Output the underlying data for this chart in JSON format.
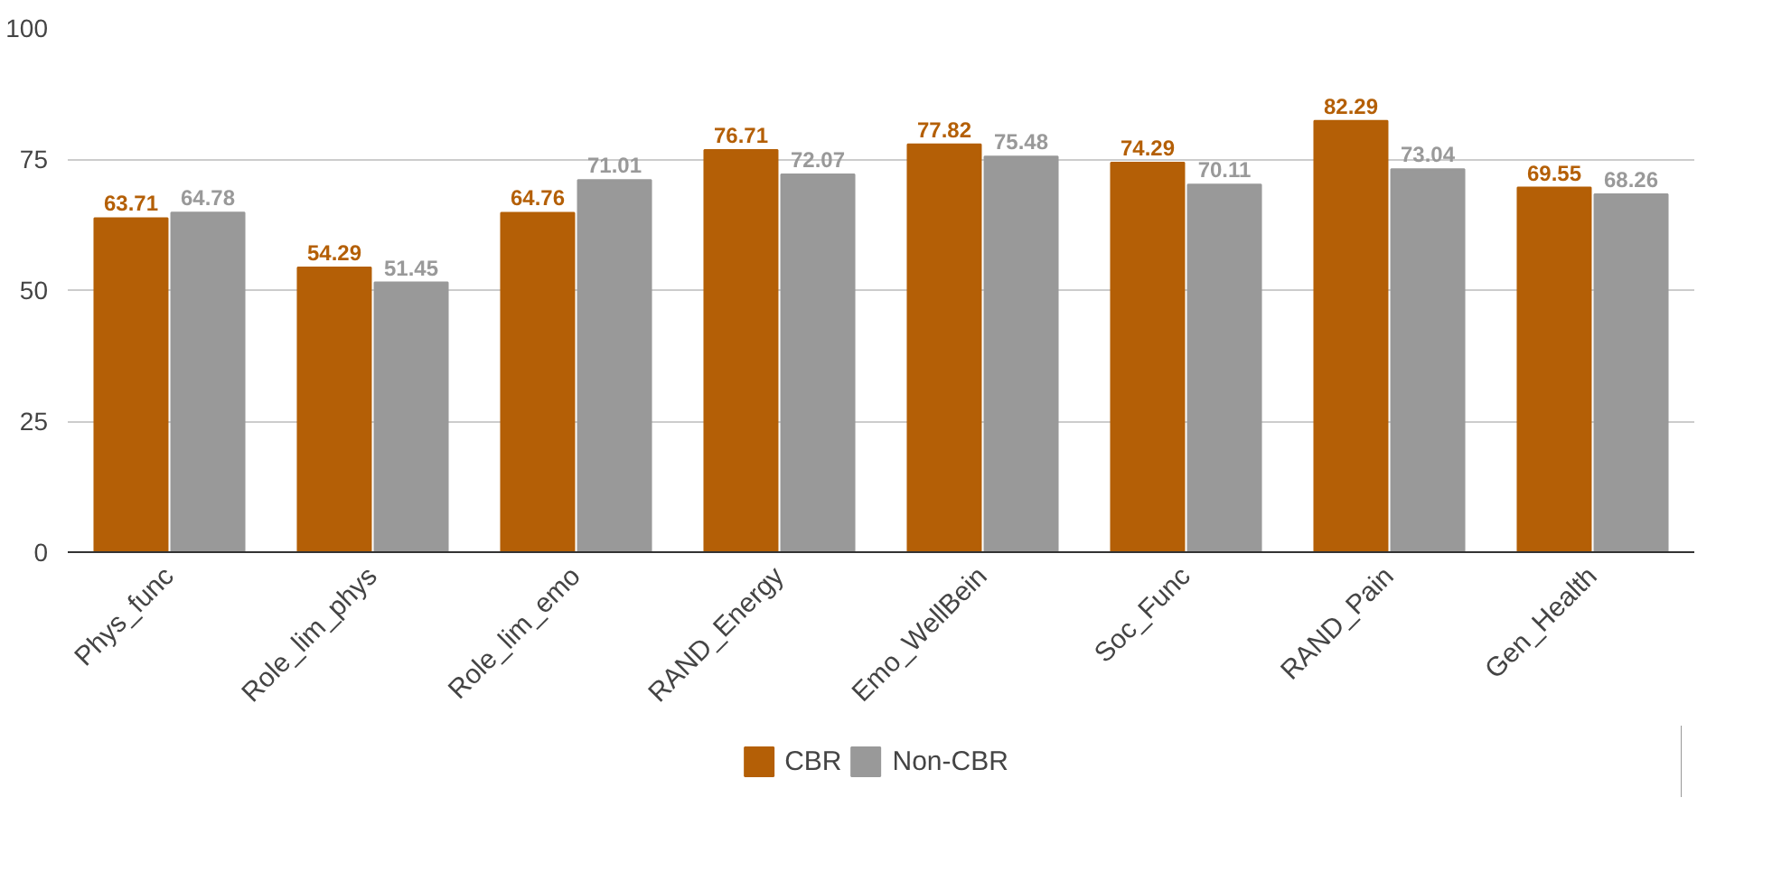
{
  "chart_data": {
    "type": "bar",
    "categories": [
      "Phys_func",
      "Role_lim_phys",
      "Role_lim_emo",
      "RAND_Energy",
      "Emo_WellBein",
      "Soc_Func",
      "RAND_Pain",
      "Gen_Health"
    ],
    "series": [
      {
        "name": "CBR",
        "color": "#b45f06",
        "values": [
          63.71,
          54.29,
          64.76,
          76.71,
          77.82,
          74.29,
          82.29,
          69.55
        ]
      },
      {
        "name": "Non-CBR",
        "color": "#999999",
        "values": [
          64.78,
          51.45,
          71.01,
          72.07,
          75.48,
          70.11,
          73.04,
          68.26
        ]
      }
    ],
    "ylim": [
      0,
      100
    ],
    "yticks": [
      0,
      25,
      50,
      75,
      100
    ],
    "grid": "y",
    "legend": "bottom",
    "data_labels": true
  }
}
